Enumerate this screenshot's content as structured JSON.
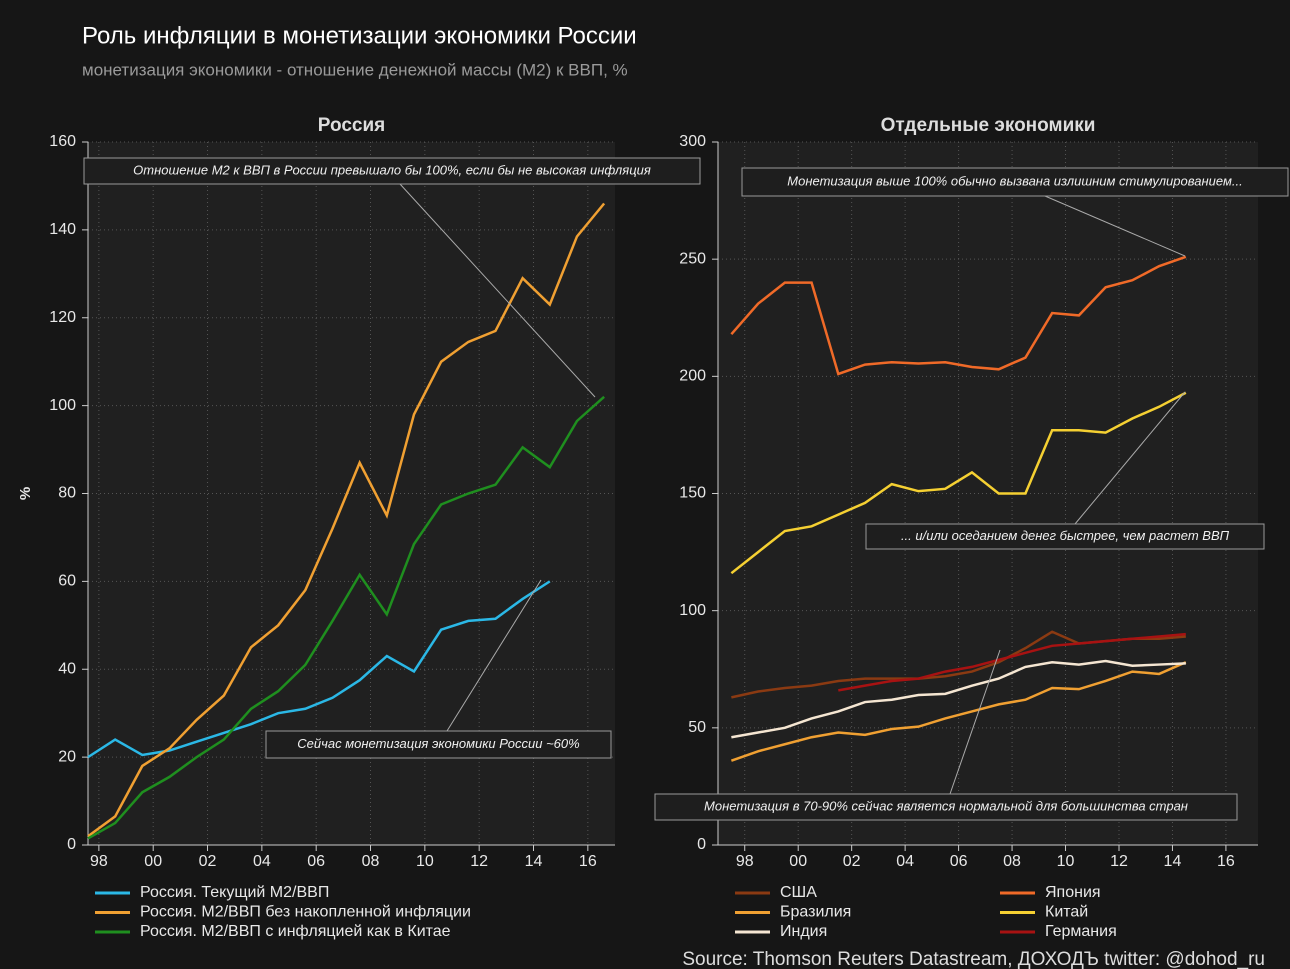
{
  "header": {
    "title": "Роль инфляции в монетизации экономики России",
    "subtitle": "монетизация экономики - отношение денежной массы (М2) к ВВП, %"
  },
  "source": "Source: Thomson Reuters Datastream, ДОХОДЪ twitter: @dohod_ru",
  "chart_data": [
    {
      "type": "line",
      "title": "Россия",
      "ylabel": "%",
      "grid": true,
      "x": [
        1997.6,
        1998.6,
        1999.6,
        2000.6,
        2001.6,
        2002.6,
        2003.6,
        2004.6,
        2005.6,
        2006.6,
        2007.6,
        2008.6,
        2009.6,
        2010.6,
        2011.6,
        2012.6,
        2013.6,
        2014.6,
        2015.6,
        2016.6
      ],
      "xlim": [
        1997.6,
        2017
      ],
      "xticks": [
        {
          "value": 1998,
          "label": "98"
        },
        {
          "value": 2000,
          "label": "00"
        },
        {
          "value": 2002,
          "label": "02"
        },
        {
          "value": 2004,
          "label": "04"
        },
        {
          "value": 2006,
          "label": "06"
        },
        {
          "value": 2008,
          "label": "08"
        },
        {
          "value": 2010,
          "label": "10"
        },
        {
          "value": 2012,
          "label": "12"
        },
        {
          "value": 2014,
          "label": "14"
        },
        {
          "value": 2016,
          "label": "16"
        }
      ],
      "ylim": [
        0,
        160
      ],
      "yticks": [
        0,
        20,
        40,
        60,
        80,
        100,
        120,
        140,
        160
      ],
      "series": [
        {
          "name": "Россия. Текущий М2/ВВП",
          "color": "#2bb8e6",
          "values": [
            20,
            24,
            20.5,
            21.5,
            23.5,
            25.5,
            27.5,
            30,
            31,
            33.5,
            37.5,
            43,
            39.5,
            49,
            51,
            51.5,
            56,
            60,
            null,
            null
          ]
        },
        {
          "name": "Россия. М2/ВВП без накопленной инфляции",
          "color": "#f0a032",
          "values": [
            2,
            6.5,
            18,
            22,
            28.5,
            34,
            45,
            50,
            58,
            72,
            87,
            75,
            98,
            110,
            114.5,
            117,
            129,
            123,
            138.5,
            146
          ]
        },
        {
          "name": "Россия. М2/ВВП с инфляцией как в Китае",
          "color": "#1f8f1f",
          "values": [
            1.5,
            5,
            12,
            15.5,
            20,
            24,
            31,
            35,
            41,
            51,
            61.5,
            52.5,
            68.5,
            77.5,
            80,
            82,
            90.5,
            86,
            96.5,
            102
          ]
        }
      ],
      "annotations": [
        "Отношение М2 к ВВП в России превышало бы 100%, если бы не высокая инфляция",
        "Сейчас монетизация экономики России ~60%"
      ]
    },
    {
      "type": "line",
      "title": "Отдельные экономики",
      "grid": true,
      "x": [
        1997.5,
        1998.5,
        1999.5,
        2000.5,
        2001.5,
        2002.5,
        2003.5,
        2004.5,
        2005.5,
        2006.5,
        2007.5,
        2008.5,
        2009.5,
        2010.5,
        2011.5,
        2012.5,
        2013.5,
        2014.5
      ],
      "xlim": [
        1997,
        2017.2
      ],
      "xticks": [
        {
          "value": 1998,
          "label": "98"
        },
        {
          "value": 2000,
          "label": "00"
        },
        {
          "value": 2002,
          "label": "02"
        },
        {
          "value": 2004,
          "label": "04"
        },
        {
          "value": 2006,
          "label": "06"
        },
        {
          "value": 2008,
          "label": "08"
        },
        {
          "value": 2010,
          "label": "10"
        },
        {
          "value": 2012,
          "label": "12"
        },
        {
          "value": 2014,
          "label": "14"
        },
        {
          "value": 2016,
          "label": "16"
        }
      ],
      "ylim": [
        0,
        300
      ],
      "yticks": [
        0,
        50,
        100,
        150,
        200,
        250,
        300
      ],
      "series": [
        {
          "name": "США",
          "color": "#8b3a12",
          "values": [
            63,
            65.5,
            67,
            68,
            70,
            71,
            71,
            71,
            72,
            74,
            78,
            84,
            91,
            86,
            87,
            88,
            88,
            89
          ]
        },
        {
          "name": "Япония",
          "color": "#f06a28",
          "values": [
            218,
            231,
            240,
            240,
            201,
            205,
            206,
            205.5,
            206,
            204,
            203,
            208,
            227,
            226,
            238,
            241,
            247,
            251
          ]
        },
        {
          "name": "Бразилия",
          "color": "#f0a032",
          "values": [
            36,
            40,
            43,
            46,
            48,
            47,
            49.5,
            50.5,
            54,
            57,
            60,
            62,
            67,
            66.5,
            70,
            74,
            73,
            78
          ]
        },
        {
          "name": "Китай",
          "color": "#f5d032",
          "values": [
            116,
            125,
            134,
            136,
            141,
            146,
            154,
            151,
            152,
            159,
            150,
            150,
            177,
            177,
            176,
            182,
            187,
            193
          ]
        },
        {
          "name": "Индия",
          "color": "#f5e6d2",
          "values": [
            46,
            48,
            50,
            54,
            57,
            61,
            62,
            64,
            64.5,
            68,
            71,
            76,
            78,
            77,
            78.5,
            76.5,
            77,
            77.5
          ]
        },
        {
          "name": "Германия",
          "color": "#a81212",
          "values": [
            null,
            null,
            null,
            null,
            66,
            68,
            70,
            71,
            74,
            76,
            79,
            82,
            85,
            86,
            87,
            88,
            89,
            90
          ]
        }
      ],
      "annotations": [
        "Монетизация выше 100% обычно вызвана излишним стимулированием...",
        "... и/или оседанием денег быстрее, чем растет ВВП",
        "Монетизация в 70-90% сейчас является нормальной для большинства стран"
      ]
    }
  ]
}
